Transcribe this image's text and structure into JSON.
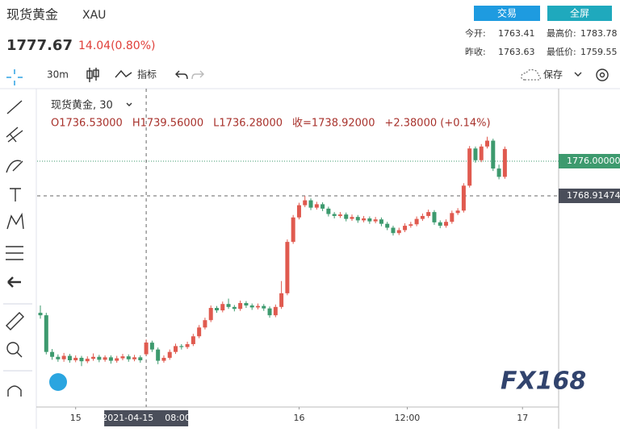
{
  "header": {
    "title": "现货黄金",
    "symbol": "XAU",
    "price": "1777.67",
    "change": "14.04(0.80%)",
    "buttons": [
      "交易",
      "全屏"
    ],
    "stats": [
      [
        "今开:",
        "1763.41"
      ],
      [
        "最高价:",
        "1783.78"
      ],
      [
        "昨收:",
        "1763.63"
      ],
      [
        "最低价:",
        "1759.55"
      ]
    ]
  },
  "toolbar": {
    "interval": "30m",
    "indicators": "指标",
    "save": "保存"
  },
  "watermark": "FX168",
  "chart_data": {
    "type": "candlestick",
    "legend_title": "现货黄金, 30",
    "legend_values": [
      "O1736.53000",
      "H1739.56000",
      "L1736.28000",
      "收=1738.92000",
      "+2.38000 (+0.14%)"
    ],
    "up_color": "#e05a4f",
    "down_color": "#3d9a6e",
    "ylim": [
      1725.74,
      1790.83
    ],
    "xlim": [
      -0.55,
      88.15
    ],
    "xticks": [
      {
        "value": 6,
        "label": "15"
      },
      {
        "value": 44,
        "label": "16"
      },
      {
        "value": 62.4,
        "label": "12:00"
      },
      {
        "value": 82,
        "label": "17"
      }
    ],
    "crosshair": {
      "x": 18,
      "x_label": "2021-04-15    08:00",
      "y": {
        "value": 1768.91474,
        "label": "1768.91474"
      }
    },
    "last_price": {
      "value": 1776,
      "label": "1776.00000"
    },
    "candles": [
      [
        1745.0,
        1746.5,
        1743.8,
        1744.5
      ],
      [
        1744.5,
        1745.0,
        1736.5,
        1737.0
      ],
      [
        1737.0,
        1737.6,
        1735.4,
        1736.0
      ],
      [
        1736.0,
        1736.5,
        1735.0,
        1735.5
      ],
      [
        1735.5,
        1736.8,
        1735.0,
        1736.2
      ],
      [
        1736.2,
        1736.6,
        1734.8,
        1735.3
      ],
      [
        1735.3,
        1736.3,
        1734.9,
        1735.8
      ],
      [
        1735.8,
        1736.2,
        1734.1,
        1735.1
      ],
      [
        1735.1,
        1736.1,
        1734.7,
        1735.6
      ],
      [
        1735.6,
        1736.7,
        1735.2,
        1736.0
      ],
      [
        1736.0,
        1736.4,
        1734.9,
        1735.4
      ],
      [
        1735.4,
        1736.3,
        1735.0,
        1735.9
      ],
      [
        1735.9,
        1736.3,
        1734.6,
        1735.2
      ],
      [
        1735.2,
        1736.2,
        1734.8,
        1735.7
      ],
      [
        1735.7,
        1736.6,
        1735.3,
        1736.1
      ],
      [
        1736.1,
        1736.5,
        1735.0,
        1735.5
      ],
      [
        1735.5,
        1736.4,
        1735.1,
        1735.9
      ],
      [
        1735.9,
        1736.3,
        1734.8,
        1735.3
      ],
      [
        1736.53,
        1739.56,
        1736.28,
        1738.92
      ],
      [
        1738.9,
        1739.3,
        1737.0,
        1737.5
      ],
      [
        1737.5,
        1737.9,
        1734.5,
        1735.2
      ],
      [
        1735.2,
        1736.3,
        1734.8,
        1735.8
      ],
      [
        1735.8,
        1737.5,
        1735.4,
        1737.0
      ],
      [
        1737.0,
        1738.7,
        1736.6,
        1738.2
      ],
      [
        1738.2,
        1738.6,
        1737.5,
        1738.0
      ],
      [
        1738.0,
        1739.1,
        1737.6,
        1738.6
      ],
      [
        1738.6,
        1740.7,
        1738.2,
        1740.2
      ],
      [
        1740.2,
        1742.5,
        1739.8,
        1742.0
      ],
      [
        1742.0,
        1744.0,
        1741.6,
        1743.5
      ],
      [
        1743.5,
        1746.5,
        1743.1,
        1746.0
      ],
      [
        1746.0,
        1746.4,
        1745.0,
        1745.5
      ],
      [
        1745.5,
        1747.3,
        1745.1,
        1746.8
      ],
      [
        1746.8,
        1747.9,
        1745.8,
        1746.2
      ],
      [
        1746.2,
        1746.6,
        1745.3,
        1745.8
      ],
      [
        1745.8,
        1747.5,
        1745.4,
        1747.0
      ],
      [
        1747.0,
        1747.4,
        1746.0,
        1746.5
      ],
      [
        1746.5,
        1746.9,
        1745.6,
        1746.1
      ],
      [
        1746.1,
        1746.9,
        1745.7,
        1746.4
      ],
      [
        1746.4,
        1746.8,
        1745.4,
        1745.9
      ],
      [
        1745.9,
        1746.3,
        1744.0,
        1744.5
      ],
      [
        1744.5,
        1746.7,
        1744.1,
        1746.2
      ],
      [
        1746.2,
        1751.5,
        1745.8,
        1749.0
      ],
      [
        1749.0,
        1760.0,
        1748.6,
        1759.5
      ],
      [
        1759.5,
        1765.0,
        1759.1,
        1764.5
      ],
      [
        1764.5,
        1767.5,
        1764.1,
        1767.0
      ],
      [
        1767.0,
        1768.9,
        1766.6,
        1768.0
      ],
      [
        1768.0,
        1768.4,
        1766.0,
        1766.5
      ],
      [
        1766.5,
        1767.7,
        1766.1,
        1767.2
      ],
      [
        1767.2,
        1767.6,
        1765.8,
        1766.3
      ],
      [
        1766.3,
        1766.7,
        1764.7,
        1765.2
      ],
      [
        1765.2,
        1765.6,
        1764.3,
        1764.8
      ],
      [
        1764.8,
        1765.6,
        1764.4,
        1765.1
      ],
      [
        1765.1,
        1765.5,
        1763.7,
        1764.2
      ],
      [
        1764.2,
        1765.1,
        1763.8,
        1764.6
      ],
      [
        1764.6,
        1765.0,
        1763.4,
        1763.9
      ],
      [
        1763.9,
        1764.8,
        1763.5,
        1764.3
      ],
      [
        1764.3,
        1764.7,
        1763.2,
        1763.7
      ],
      [
        1763.7,
        1764.6,
        1763.3,
        1764.1
      ],
      [
        1764.1,
        1764.5,
        1762.7,
        1763.2
      ],
      [
        1763.2,
        1763.6,
        1761.9,
        1762.4
      ],
      [
        1762.4,
        1762.8,
        1760.8,
        1761.3
      ],
      [
        1761.3,
        1762.4,
        1760.9,
        1761.9
      ],
      [
        1761.9,
        1763.3,
        1761.5,
        1762.8
      ],
      [
        1762.8,
        1763.6,
        1762.4,
        1763.1
      ],
      [
        1763.1,
        1764.7,
        1762.7,
        1764.2
      ],
      [
        1764.2,
        1765.3,
        1763.8,
        1764.8
      ],
      [
        1764.8,
        1766.1,
        1764.4,
        1765.6
      ],
      [
        1765.6,
        1766.0,
        1763.0,
        1763.5
      ],
      [
        1763.5,
        1763.9,
        1762.3,
        1762.8
      ],
      [
        1762.8,
        1764.1,
        1762.4,
        1763.6
      ],
      [
        1763.6,
        1765.9,
        1763.2,
        1765.4
      ],
      [
        1765.4,
        1766.4,
        1765.0,
        1765.9
      ],
      [
        1765.9,
        1771.5,
        1765.5,
        1771.0
      ],
      [
        1771.0,
        1779.1,
        1770.6,
        1778.6
      ],
      [
        1778.6,
        1779.0,
        1775.7,
        1776.2
      ],
      [
        1776.2,
        1779.5,
        1775.8,
        1779.0
      ],
      [
        1779.0,
        1781.0,
        1778.6,
        1780.2
      ],
      [
        1780.2,
        1780.6,
        1774.0,
        1774.5
      ],
      [
        1774.5,
        1775.3,
        1772.3,
        1772.8
      ],
      [
        1772.8,
        1779.0,
        1772.4,
        1778.5
      ]
    ]
  }
}
